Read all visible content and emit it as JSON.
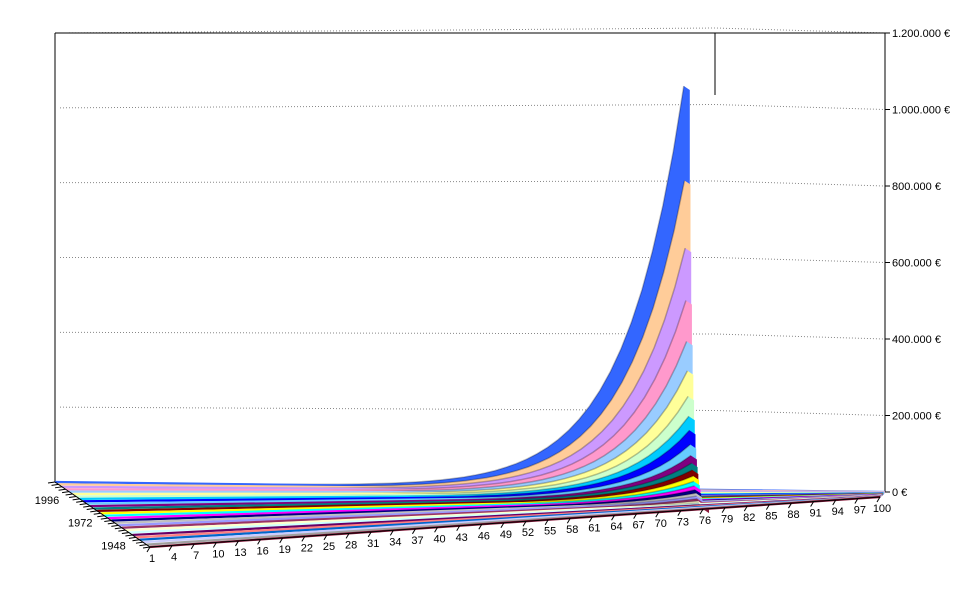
{
  "chart_data": {
    "type": "area",
    "projection": "3d-ribbon",
    "title": "",
    "y_ticks": [
      "0 €",
      "200.000 €",
      "400.000 €",
      "600.000 €",
      "800.000 €",
      "1.000.000 €",
      "1.200.000 €"
    ],
    "y_values": [
      0,
      200000,
      400000,
      600000,
      800000,
      1000000,
      1200000
    ],
    "ylim": [
      0,
      1200000
    ],
    "x_ticks": [
      "1",
      "4",
      "7",
      "10",
      "13",
      "16",
      "19",
      "22",
      "25",
      "28",
      "31",
      "34",
      "37",
      "40",
      "43",
      "46",
      "49",
      "52",
      "55",
      "58",
      "61",
      "64",
      "67",
      "70",
      "73",
      "76",
      "79",
      "82",
      "85",
      "88",
      "91",
      "94",
      "97",
      "100"
    ],
    "xlim": [
      1,
      100
    ],
    "depth_ticks": [
      "1948",
      "1972",
      "1996"
    ],
    "grid": true,
    "series_peak_x": 76,
    "series": [
      {
        "peak": 1055000,
        "color": "#3366ff"
      },
      {
        "peak": 810000,
        "color": "#ffcc99"
      },
      {
        "peak": 635000,
        "color": "#cc99ff"
      },
      {
        "peak": 500000,
        "color": "#ff99cc"
      },
      {
        "peak": 395000,
        "color": "#99ccff"
      },
      {
        "peak": 320000,
        "color": "#ffff99"
      },
      {
        "peak": 255000,
        "color": "#ccffcc"
      },
      {
        "peak": 205000,
        "color": "#00ccff"
      },
      {
        "peak": 170000,
        "color": "#0000ff"
      },
      {
        "peak": 135000,
        "color": "#66ccff"
      },
      {
        "peak": 108000,
        "color": "#800080"
      },
      {
        "peak": 90000,
        "color": "#008080"
      },
      {
        "peak": 74000,
        "color": "#800000"
      },
      {
        "peak": 60000,
        "color": "#ffff00"
      },
      {
        "peak": 48000,
        "color": "#00ffff"
      },
      {
        "peak": 38000,
        "color": "#ff00ff"
      },
      {
        "peak": 30000,
        "color": "#000080"
      },
      {
        "peak": 23000,
        "color": "#c0c0c0"
      },
      {
        "peak": 17000,
        "color": "#9999ff"
      },
      {
        "peak": 12000,
        "color": "#993366"
      },
      {
        "peak": 8000,
        "color": "#ffffcc"
      },
      {
        "peak": 5000,
        "color": "#ccffff"
      },
      {
        "peak": 3000,
        "color": "#660066"
      },
      {
        "peak": 2000,
        "color": "#ff8080"
      },
      {
        "peak": 1000,
        "color": "#0066cc"
      },
      {
        "peak": 500,
        "color": "#ccccff"
      },
      {
        "peak": 200,
        "color": "#a0a0a0"
      },
      {
        "peak": 100,
        "color": "#8b1a3c"
      }
    ]
  }
}
